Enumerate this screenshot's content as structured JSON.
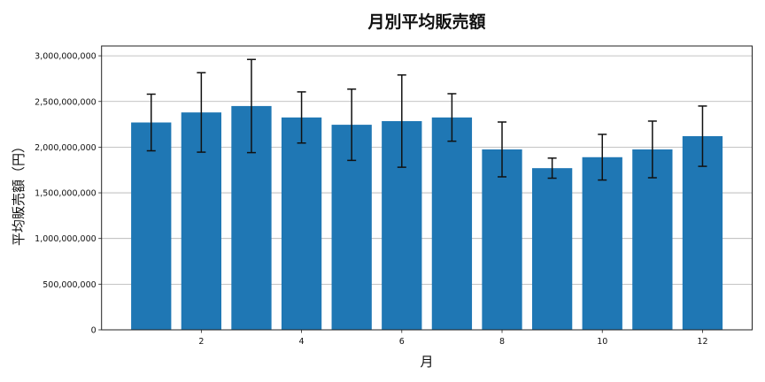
{
  "chart_data": {
    "type": "bar",
    "title": "月別平均販売額",
    "xlabel": "月",
    "ylabel": "平均販売額（円）",
    "categories": [
      1,
      2,
      3,
      4,
      5,
      6,
      7,
      8,
      9,
      10,
      11,
      12
    ],
    "values": [
      2270000000,
      2380000000,
      2450000000,
      2325000000,
      2245000000,
      2285000000,
      2325000000,
      1975000000,
      1770000000,
      1890000000,
      1975000000,
      2120000000
    ],
    "error": [
      310000000,
      435000000,
      510000000,
      280000000,
      390000000,
      505000000,
      260000000,
      300000000,
      110000000,
      250000000,
      310000000,
      330000000
    ],
    "error_type": "symmetric (± std)",
    "bar_color": "#1f77b4",
    "error_color": "#111111",
    "xlim": [
      0.01,
      12.99
    ],
    "ylim": [
      0,
      3100000000
    ],
    "xticks": [
      2,
      4,
      6,
      8,
      10,
      12
    ],
    "yticks": [
      0,
      500000000,
      1000000000,
      1500000000,
      2000000000,
      2500000000,
      3000000000
    ],
    "ytick_labels": [
      "0",
      "500,000,000",
      "1,000,000,000",
      "1,500,000,000",
      "2,000,000,000",
      "2,500,000,000",
      "3,000,000,000"
    ],
    "grid": {
      "axis": "y",
      "on": true
    },
    "legend": null
  }
}
